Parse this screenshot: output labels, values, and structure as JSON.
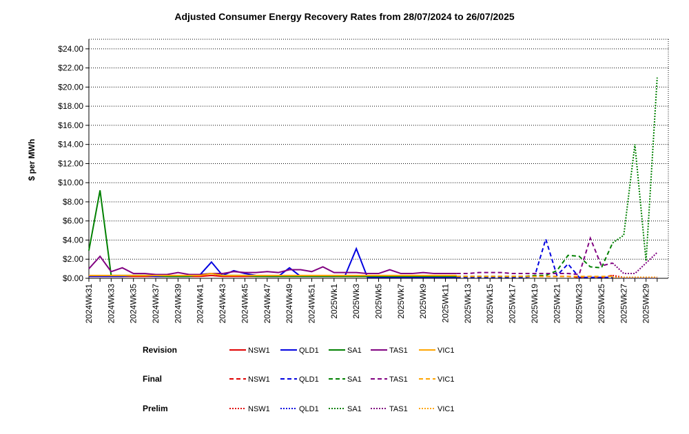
{
  "chart_data": {
    "type": "line",
    "title": "Adjusted Consumer Energy Recovery Rates from 28/07/2024 to 26/07/2025",
    "y_label": "$ per MWh",
    "categories": [
      "2024Wk31",
      null,
      "2024Wk33",
      null,
      "2024Wk35",
      null,
      "2024Wk37",
      null,
      "2024Wk39",
      null,
      "2024Wk41",
      null,
      "2024Wk43",
      null,
      "2024Wk45",
      null,
      "2024Wk47",
      null,
      "2024Wk49",
      null,
      "2024Wk51",
      null,
      "2025Wk1",
      null,
      "2025Wk3",
      null,
      "2025Wk5",
      null,
      "2025Wk7",
      null,
      "2025Wk9",
      null,
      "2025Wk11",
      null,
      "2025Wk13",
      null,
      "2025Wk15",
      null,
      "2025Wk17",
      null,
      "2025Wk19",
      null,
      "2025Wk21",
      null,
      "2025Wk23",
      null,
      "2025Wk25",
      null,
      "2025Wk27",
      null,
      "2025Wk29",
      null
    ],
    "ylim": [
      0,
      25
    ],
    "yticks": [
      {
        "value": 0,
        "label": "$0.00"
      },
      {
        "value": 2,
        "label": "$2.00"
      },
      {
        "value": 4,
        "label": "$4.00"
      },
      {
        "value": 6,
        "label": "$6.00"
      },
      {
        "value": 8,
        "label": "$8.00"
      },
      {
        "value": 10,
        "label": "$10.00"
      },
      {
        "value": 12,
        "label": "$12.00"
      },
      {
        "value": 14,
        "label": "$14.00"
      },
      {
        "value": 16,
        "label": "$16.00"
      },
      {
        "value": 18,
        "label": "$18.00"
      },
      {
        "value": 20,
        "label": "$20.00"
      },
      {
        "value": 22,
        "label": "$22.00"
      },
      {
        "value": 24,
        "label": "$24.00"
      }
    ],
    "grid": true,
    "series": [
      {
        "name": "NSW1",
        "group": "Revision",
        "dash": "solid",
        "color": "#e00000",
        "values": [
          0.2,
          0.2,
          0.2,
          0.2,
          0.2,
          0.2,
          0.2,
          0.2,
          0.2,
          0.2,
          0.2,
          0.3,
          0.2,
          0.2,
          0.2,
          0.2,
          0.2,
          0.2,
          0.2,
          0.2,
          0.2,
          0.2,
          0.2,
          0.2,
          0.2,
          0.2,
          0.2,
          0.2,
          0.2,
          0.2,
          0.2,
          0.2,
          0.2,
          0.2,
          null,
          null,
          null,
          null,
          null,
          null,
          null,
          null,
          null,
          null,
          null,
          null,
          null,
          null,
          null,
          null,
          null,
          null
        ]
      },
      {
        "name": "QLD1",
        "group": "Revision",
        "dash": "solid",
        "color": "#0000e0",
        "values": [
          0.2,
          0.2,
          0.2,
          0.2,
          0.3,
          0.3,
          0.2,
          0.2,
          0.2,
          0.2,
          0.4,
          1.7,
          0.3,
          0.8,
          0.5,
          0.3,
          0.2,
          0.2,
          1.1,
          0.2,
          0.2,
          0.2,
          0.2,
          0.3,
          3.1,
          0.1,
          0.1,
          0.1,
          0.1,
          0.1,
          0.1,
          0.1,
          0.1,
          0.1,
          null,
          null,
          null,
          null,
          null,
          null,
          null,
          null,
          null,
          null,
          null,
          null,
          null,
          null,
          null,
          null,
          null,
          null
        ]
      },
      {
        "name": "SA1",
        "group": "Revision",
        "dash": "solid",
        "color": "#008000",
        "values": [
          2.9,
          9.2,
          0.3,
          0.3,
          0.3,
          0.3,
          0.3,
          0.2,
          0.2,
          0.2,
          0.4,
          0.5,
          0.3,
          0.3,
          0.3,
          0.2,
          0.2,
          0.2,
          0.2,
          0.2,
          0.2,
          0.2,
          0.2,
          0.2,
          0.2,
          0.2,
          0.2,
          0.2,
          0.2,
          0.2,
          0.2,
          0.2,
          0.2,
          0.2,
          null,
          null,
          null,
          null,
          null,
          null,
          null,
          null,
          null,
          null,
          null,
          null,
          null,
          null,
          null,
          null,
          null,
          null
        ]
      },
      {
        "name": "TAS1",
        "group": "Revision",
        "dash": "solid",
        "color": "#800080",
        "values": [
          1.0,
          2.3,
          0.7,
          1.1,
          0.5,
          0.5,
          0.4,
          0.4,
          0.6,
          0.4,
          0.4,
          0.5,
          0.5,
          0.7,
          0.6,
          0.6,
          0.7,
          0.6,
          0.9,
          0.9,
          0.7,
          1.2,
          0.6,
          0.6,
          0.6,
          0.5,
          0.5,
          0.9,
          0.5,
          0.5,
          0.6,
          0.5,
          0.5,
          0.5,
          null,
          null,
          null,
          null,
          null,
          null,
          null,
          null,
          null,
          null,
          null,
          null,
          null,
          null,
          null,
          null,
          null,
          null
        ]
      },
      {
        "name": "VIC1",
        "group": "Revision",
        "dash": "solid",
        "color": "#ffa500",
        "values": [
          0.3,
          0.3,
          0.3,
          0.3,
          0.3,
          0.3,
          0.3,
          0.3,
          0.3,
          0.3,
          0.3,
          0.5,
          0.3,
          0.3,
          0.3,
          0.3,
          0.3,
          0.3,
          0.3,
          0.3,
          0.3,
          0.3,
          0.3,
          0.3,
          0.3,
          0.3,
          0.3,
          0.3,
          0.3,
          0.3,
          0.3,
          0.3,
          0.3,
          0.3,
          null,
          null,
          null,
          null,
          null,
          null,
          null,
          null,
          null,
          null,
          null,
          null,
          null,
          null,
          null,
          null,
          null,
          null
        ]
      },
      {
        "name": "NSW1",
        "group": "Final",
        "dash": "dashed",
        "color": "#e00000",
        "values": [
          null,
          null,
          null,
          null,
          null,
          null,
          null,
          null,
          null,
          null,
          null,
          null,
          null,
          null,
          null,
          null,
          null,
          null,
          null,
          null,
          null,
          null,
          null,
          null,
          null,
          null,
          null,
          null,
          null,
          null,
          null,
          null,
          null,
          0.2,
          0.2,
          0.2,
          0.2,
          0.2,
          0.2,
          0.2,
          0.2,
          0.2,
          0.2,
          0.2,
          0.1,
          0.2,
          0.1,
          0.3,
          null,
          null,
          null,
          null
        ]
      },
      {
        "name": "QLD1",
        "group": "Final",
        "dash": "dashed",
        "color": "#0000e0",
        "values": [
          null,
          null,
          null,
          null,
          null,
          null,
          null,
          null,
          null,
          null,
          null,
          null,
          null,
          null,
          null,
          null,
          null,
          null,
          null,
          null,
          null,
          null,
          null,
          null,
          null,
          null,
          null,
          null,
          null,
          null,
          null,
          null,
          null,
          0.1,
          0.1,
          0.1,
          0.1,
          0.1,
          0.1,
          0.1,
          0.2,
          4.1,
          0.3,
          1.5,
          0.1,
          0.1,
          0.1,
          0.1,
          null,
          null,
          null,
          null
        ]
      },
      {
        "name": "SA1",
        "group": "Final",
        "dash": "dashed",
        "color": "#008000",
        "values": [
          null,
          null,
          null,
          null,
          null,
          null,
          null,
          null,
          null,
          null,
          null,
          null,
          null,
          null,
          null,
          null,
          null,
          null,
          null,
          null,
          null,
          null,
          null,
          null,
          null,
          null,
          null,
          null,
          null,
          null,
          null,
          null,
          null,
          0.2,
          0.2,
          0.2,
          0.2,
          0.2,
          0.2,
          0.2,
          0.3,
          0.3,
          0.8,
          2.4,
          2.3,
          1.2,
          1.1,
          3.7,
          null,
          null,
          null,
          null
        ]
      },
      {
        "name": "TAS1",
        "group": "Final",
        "dash": "dashed",
        "color": "#800080",
        "values": [
          null,
          null,
          null,
          null,
          null,
          null,
          null,
          null,
          null,
          null,
          null,
          null,
          null,
          null,
          null,
          null,
          null,
          null,
          null,
          null,
          null,
          null,
          null,
          null,
          null,
          null,
          null,
          null,
          null,
          null,
          null,
          null,
          null,
          0.5,
          0.5,
          0.6,
          0.6,
          0.6,
          0.5,
          0.5,
          0.5,
          0.5,
          0.5,
          0.5,
          0.4,
          4.2,
          1.3,
          1.6,
          null,
          null,
          null,
          null
        ]
      },
      {
        "name": "VIC1",
        "group": "Final",
        "dash": "dashed",
        "color": "#ffa500",
        "values": [
          null,
          null,
          null,
          null,
          null,
          null,
          null,
          null,
          null,
          null,
          null,
          null,
          null,
          null,
          null,
          null,
          null,
          null,
          null,
          null,
          null,
          null,
          null,
          null,
          null,
          null,
          null,
          null,
          null,
          null,
          null,
          null,
          null,
          0.2,
          0.2,
          0.2,
          0.2,
          0.2,
          0.2,
          0.2,
          0.2,
          0.2,
          0.2,
          0.2,
          0.2,
          0.2,
          0.2,
          0.2,
          null,
          null,
          null,
          null
        ]
      },
      {
        "name": "NSW1",
        "group": "Prelim",
        "dash": "dotted",
        "color": "#e00000",
        "values": [
          null,
          null,
          null,
          null,
          null,
          null,
          null,
          null,
          null,
          null,
          null,
          null,
          null,
          null,
          null,
          null,
          null,
          null,
          null,
          null,
          null,
          null,
          null,
          null,
          null,
          null,
          null,
          null,
          null,
          null,
          null,
          null,
          null,
          null,
          null,
          null,
          null,
          null,
          null,
          null,
          null,
          null,
          null,
          null,
          null,
          null,
          null,
          0.3,
          0.1,
          0.1,
          0.1,
          0.1
        ]
      },
      {
        "name": "QLD1",
        "group": "Prelim",
        "dash": "dotted",
        "color": "#0000e0",
        "values": [
          null,
          null,
          null,
          null,
          null,
          null,
          null,
          null,
          null,
          null,
          null,
          null,
          null,
          null,
          null,
          null,
          null,
          null,
          null,
          null,
          null,
          null,
          null,
          null,
          null,
          null,
          null,
          null,
          null,
          null,
          null,
          null,
          null,
          null,
          null,
          null,
          null,
          null,
          null,
          null,
          null,
          null,
          null,
          null,
          null,
          null,
          null,
          0.1,
          0.05,
          0.05,
          0.05,
          0.05
        ]
      },
      {
        "name": "SA1",
        "group": "Prelim",
        "dash": "dotted",
        "color": "#008000",
        "values": [
          null,
          null,
          null,
          null,
          null,
          null,
          null,
          null,
          null,
          null,
          null,
          null,
          null,
          null,
          null,
          null,
          null,
          null,
          null,
          null,
          null,
          null,
          null,
          null,
          null,
          null,
          null,
          null,
          null,
          null,
          null,
          null,
          null,
          null,
          null,
          null,
          null,
          null,
          null,
          null,
          null,
          null,
          null,
          null,
          null,
          null,
          null,
          3.7,
          4.5,
          14,
          1.8,
          21
        ]
      },
      {
        "name": "TAS1",
        "group": "Prelim",
        "dash": "dotted",
        "color": "#800080",
        "values": [
          null,
          null,
          null,
          null,
          null,
          null,
          null,
          null,
          null,
          null,
          null,
          null,
          null,
          null,
          null,
          null,
          null,
          null,
          null,
          null,
          null,
          null,
          null,
          null,
          null,
          null,
          null,
          null,
          null,
          null,
          null,
          null,
          null,
          null,
          null,
          null,
          null,
          null,
          null,
          null,
          null,
          null,
          null,
          null,
          null,
          null,
          null,
          1.6,
          0.5,
          0.5,
          1.6,
          2.7
        ]
      },
      {
        "name": "VIC1",
        "group": "Prelim",
        "dash": "dotted",
        "color": "#ffa500",
        "values": [
          null,
          null,
          null,
          null,
          null,
          null,
          null,
          null,
          null,
          null,
          null,
          null,
          null,
          null,
          null,
          null,
          null,
          null,
          null,
          null,
          null,
          null,
          null,
          null,
          null,
          null,
          null,
          null,
          null,
          null,
          null,
          null,
          null,
          null,
          null,
          null,
          null,
          null,
          null,
          null,
          null,
          null,
          null,
          null,
          null,
          null,
          null,
          0.1,
          0.1,
          0.1,
          0.1,
          0.1
        ]
      }
    ]
  }
}
